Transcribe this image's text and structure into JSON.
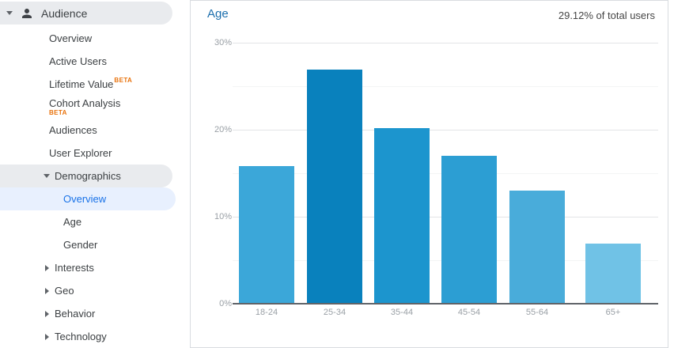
{
  "sidebar": {
    "header": {
      "label": "Audience",
      "icon": "person-icon"
    },
    "items": [
      {
        "label": "Overview",
        "level": 1
      },
      {
        "label": "Active Users",
        "level": 1
      },
      {
        "label": "Lifetime Value",
        "level": 1,
        "beta": "sup",
        "beta_label": "BETA"
      },
      {
        "label": "Cohort Analysis",
        "level": 1,
        "beta": "below",
        "beta_label": "BETA"
      },
      {
        "label": "Audiences",
        "level": 1
      },
      {
        "label": "User Explorer",
        "level": 1
      },
      {
        "label": "Demographics",
        "level": 1,
        "expandable": true,
        "expanded": true,
        "pill": "grey"
      },
      {
        "label": "Overview",
        "level": 2,
        "selected": true
      },
      {
        "label": "Age",
        "level": 2
      },
      {
        "label": "Gender",
        "level": 2
      },
      {
        "label": "Interests",
        "level": 1,
        "expandable": true,
        "expanded": false
      },
      {
        "label": "Geo",
        "level": 1,
        "expandable": true,
        "expanded": false
      },
      {
        "label": "Behavior",
        "level": 1,
        "expandable": true,
        "expanded": false
      },
      {
        "label": "Technology",
        "level": 1,
        "expandable": true,
        "expanded": false
      }
    ]
  },
  "panel": {
    "title": "Age",
    "subtitle": "29.12% of total users"
  },
  "chart_data": {
    "type": "bar",
    "title": "Age",
    "annotation": "29.12% of total users",
    "categories": [
      "18-24",
      "25-34",
      "35-44",
      "45-54",
      "55-64",
      "65+"
    ],
    "values": [
      15.8,
      26.9,
      20.2,
      17.0,
      13.0,
      6.9
    ],
    "unit": "%",
    "xlabel": "",
    "ylabel": "",
    "ylim": [
      0,
      30
    ],
    "ytick_major_step": 10,
    "ytick_minor_step": 5,
    "ytick_labels": [
      "0%",
      "10%",
      "20%",
      "30%"
    ],
    "grid": true,
    "legend": false,
    "bar_colors": [
      "#3ba7d9",
      "#0981bd",
      "#1c95ce",
      "#2c9ed3",
      "#49acda",
      "#70c2e6"
    ]
  },
  "colors": {
    "selected_blue": "#1a73e8",
    "selected_pill": "#e8f0fe",
    "hover_pill_grey": "#e9ebee",
    "beta_orange": "#e8710a",
    "title_link_blue": "#1c6fad",
    "axis_label_grey": "#9aa0a6",
    "sidebar_text": "#3c4043"
  }
}
